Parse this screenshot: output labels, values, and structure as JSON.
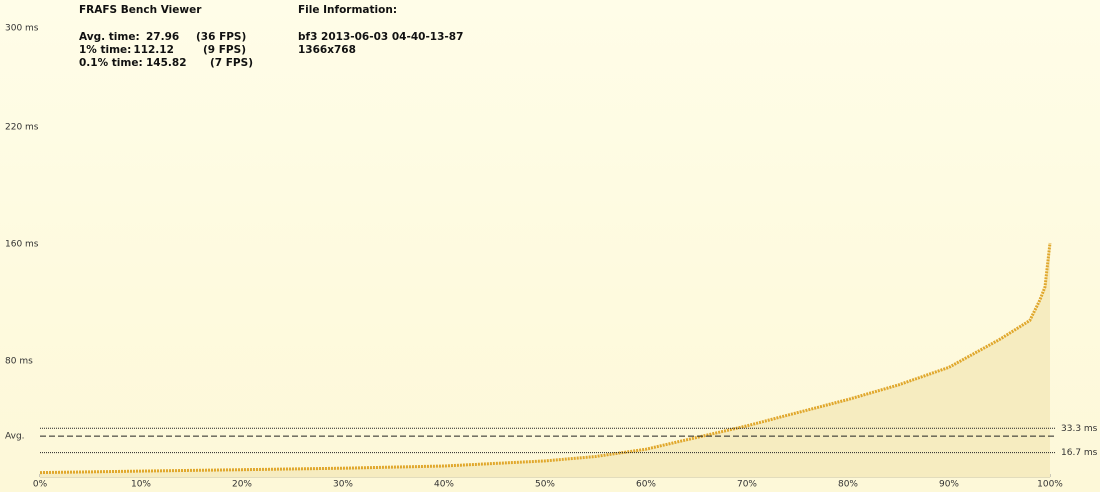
{
  "chart_data": {
    "type": "area",
    "title": "FRAFS Bench Viewer",
    "stats": [
      {
        "label": "Avg. time:",
        "value": 27.96,
        "fps": "(36 FPS)"
      },
      {
        "label": "1% time:",
        "value": 112.12,
        "fps": "(9 FPS)"
      },
      {
        "label": "0.1% time:",
        "value": 145.82,
        "fps": "(7 FPS)"
      }
    ],
    "file_info": {
      "title": "File Information:",
      "name": "bf3 2013-06-03 04-40-13-87",
      "resolution": "1366x768"
    },
    "avg_label": "Avg.",
    "reference_lines": [
      {
        "value": 33.3,
        "label": "33.3 ms"
      },
      {
        "value": 16.7,
        "label": "16.7 ms"
      }
    ],
    "x": [
      0,
      10,
      20,
      30,
      40,
      50,
      55,
      60,
      65,
      70,
      75,
      80,
      85,
      90,
      95,
      98,
      99,
      99.5,
      100
    ],
    "series": [
      {
        "color": "#e0a72c",
        "fill": "#f6ecc0",
        "values": [
          3,
          4,
          5,
          6,
          7.5,
          11,
          14,
          19,
          27,
          35,
          44,
          53,
          63,
          75,
          94,
          107,
          121,
          130,
          160
        ]
      }
    ],
    "xlim": [
      0,
      100
    ],
    "xticks": [
      {
        "value": 0,
        "label": "0%"
      },
      {
        "value": 10,
        "label": "10%"
      },
      {
        "value": 20,
        "label": "20%"
      },
      {
        "value": 30,
        "label": "30%"
      },
      {
        "value": 40,
        "label": "40%"
      },
      {
        "value": 50,
        "label": "50%"
      },
      {
        "value": 60,
        "label": "60%"
      },
      {
        "value": 70,
        "label": "70%"
      },
      {
        "value": 80,
        "label": "80%"
      },
      {
        "value": 90,
        "label": "90%"
      },
      {
        "value": 100,
        "label": "100%"
      }
    ],
    "ylim": [
      0,
      300
    ],
    "yticks": [
      {
        "value": 80,
        "label": "80 ms"
      },
      {
        "value": 160,
        "label": "160 ms"
      },
      {
        "value": 220,
        "label": "220 ms"
      },
      {
        "value": 300,
        "label": "300 ms"
      }
    ]
  }
}
